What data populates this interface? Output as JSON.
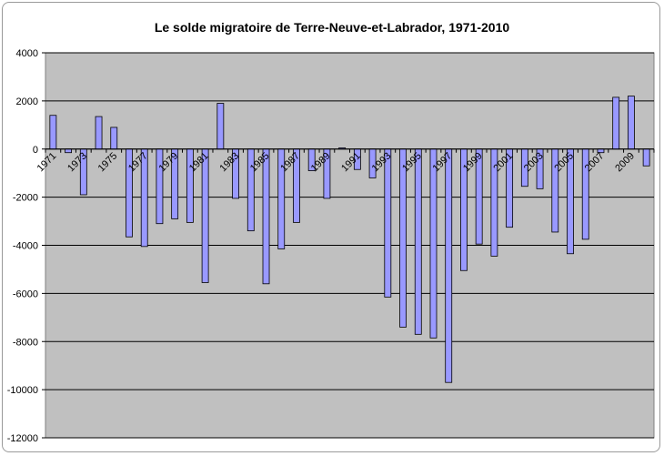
{
  "chart_data": {
    "type": "bar",
    "title": "Le solde migratoire de Terre-Neuve-et-Labrador, 1971-2010",
    "xlabel": "",
    "ylabel": "",
    "ylim": [
      -12000,
      4000
    ],
    "yticks": [
      4000,
      2000,
      0,
      -2000,
      -4000,
      -6000,
      -8000,
      -10000,
      -12000
    ],
    "grid": true,
    "legend": "none",
    "categories": [
      "1971",
      "1972",
      "1973",
      "1974",
      "1975",
      "1976",
      "1977",
      "1978",
      "1979",
      "1980",
      "1981",
      "1982",
      "1983",
      "1984",
      "1985",
      "1986",
      "1987",
      "1988",
      "1989",
      "1990",
      "1991",
      "1992",
      "1993",
      "1994",
      "1995",
      "1996",
      "1997",
      "1998",
      "1999",
      "2000",
      "2001",
      "2002",
      "2003",
      "2004",
      "2005",
      "2006",
      "2007",
      "2008",
      "2009",
      "2010"
    ],
    "category_labels_shown": [
      "1971",
      "1973",
      "1975",
      "1977",
      "1979",
      "1981",
      "1983",
      "1985",
      "1987",
      "1989",
      "1991",
      "1993",
      "1995",
      "1997",
      "1999",
      "2001",
      "2003",
      "2005",
      "2007",
      "2009"
    ],
    "series": [
      {
        "values": [
          1400,
          -150,
          -1900,
          1350,
          900,
          -3650,
          -4050,
          -3100,
          -2900,
          -3050,
          -5550,
          1900,
          -2050,
          -3400,
          -5600,
          -4150,
          -3050,
          -900,
          -2050,
          50,
          -850,
          -1200,
          -6150,
          -7400,
          -7700,
          -7850,
          -9700,
          -5050,
          -3950,
          -4450,
          -3250,
          -1550,
          -1650,
          -3450,
          -4350,
          -3750,
          -150,
          2150,
          2200,
          -700
        ]
      }
    ],
    "colors": {
      "plot_background": "#c0c0c0",
      "bar_fill": "#9999ff",
      "bar_stroke": "#000000",
      "gridline": "#000000"
    }
  }
}
